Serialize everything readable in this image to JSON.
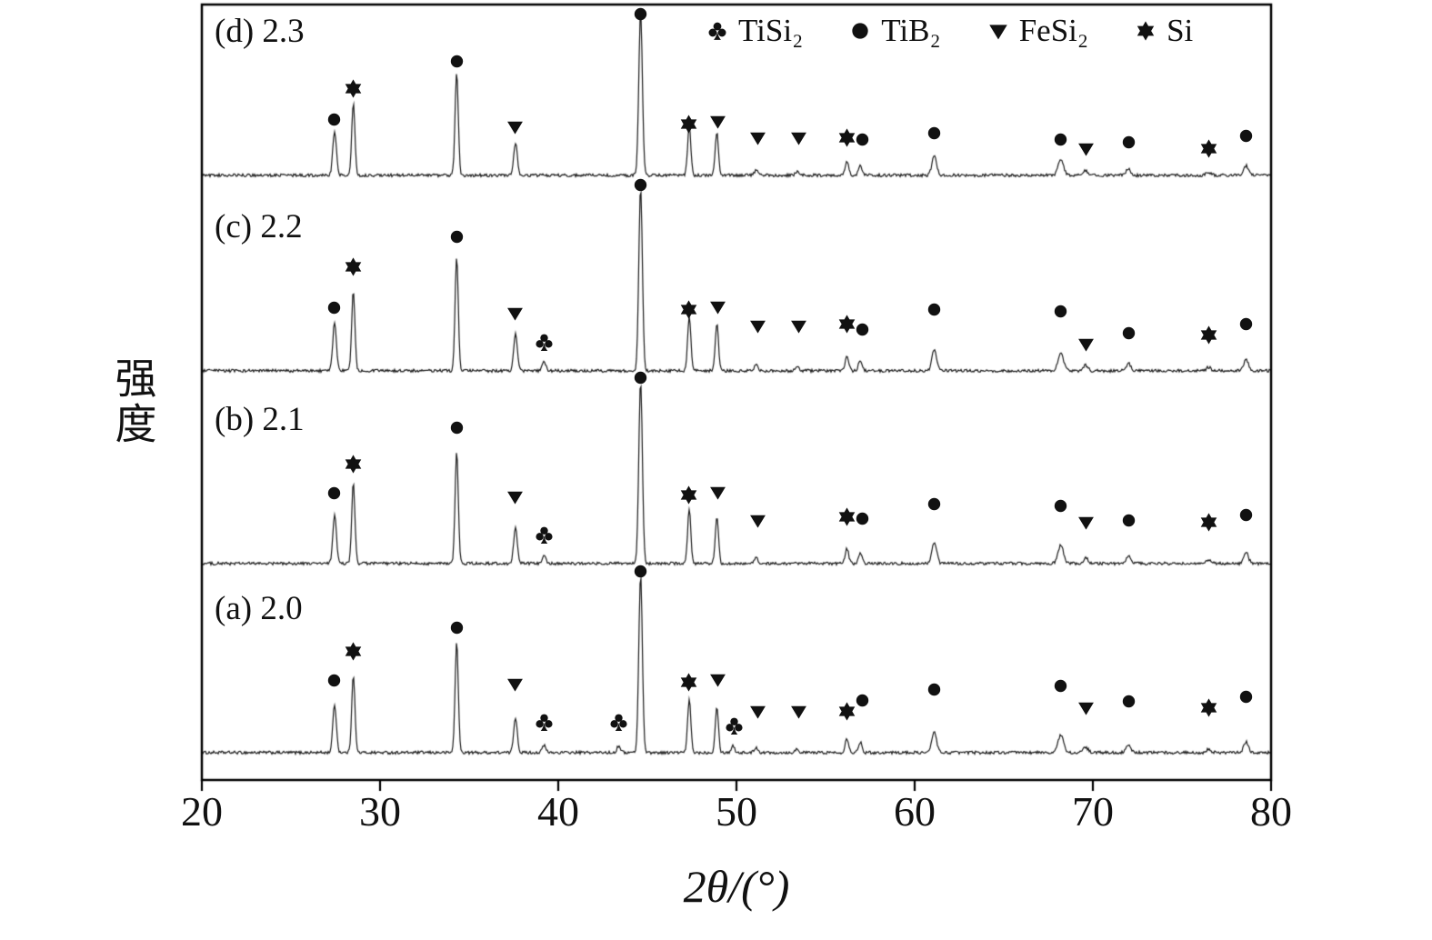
{
  "legend": {
    "items": [
      {
        "marker": "club",
        "label": "TiSi₂"
      },
      {
        "marker": "circle",
        "label": "TiB₂"
      },
      {
        "marker": "triangle",
        "label": "FeSi₂"
      },
      {
        "marker": "star",
        "label": "Si"
      }
    ]
  },
  "chart_data": {
    "type": "line",
    "chart_kind": "stacked-xrd-patterns",
    "title": "",
    "xlabel": "2θ/(°)",
    "ylabel": "强度",
    "xlim": [
      20,
      80
    ],
    "xticks": [
      20,
      30,
      40,
      50,
      60,
      70,
      80
    ],
    "grid": false,
    "legend_position": "top-right-inside",
    "phase_markers": {
      "club": "TiSi₂",
      "circle": "TiB₂",
      "triangle": "FeSi₂",
      "star": "Si"
    },
    "series": [
      {
        "name": "(a) 2.0",
        "panel": "a",
        "ratio": "2.0",
        "baseline": 828,
        "amp": 195,
        "peaks": [
          [
            27.45,
            0.27,
            0.1
          ],
          [
            28.5,
            0.44,
            0.09
          ],
          [
            34.3,
            0.62,
            0.09
          ],
          [
            37.6,
            0.2,
            0.1
          ],
          [
            39.2,
            0.04,
            0.1
          ],
          [
            43.4,
            0.04,
            0.1
          ],
          [
            44.62,
            1.0,
            0.1
          ],
          [
            47.35,
            0.3,
            0.09
          ],
          [
            48.9,
            0.26,
            0.09
          ],
          [
            49.8,
            0.04,
            0.09
          ],
          [
            51.1,
            0.03,
            0.1
          ],
          [
            53.4,
            0.02,
            0.1
          ],
          [
            56.2,
            0.08,
            0.1
          ],
          [
            56.95,
            0.06,
            0.1
          ],
          [
            61.1,
            0.12,
            0.13
          ],
          [
            68.2,
            0.1,
            0.15
          ],
          [
            69.6,
            0.03,
            0.13
          ],
          [
            72.0,
            0.04,
            0.13
          ],
          [
            76.5,
            0.02,
            0.13
          ],
          [
            78.6,
            0.06,
            0.13
          ]
        ],
        "markers": [
          [
            "circle",
            27.4,
            80
          ],
          [
            "star",
            28.52,
            112
          ],
          [
            "circle",
            34.3,
            138
          ],
          [
            "triangle",
            37.6,
            76
          ],
          [
            "club",
            39.2,
            34
          ],
          [
            "club",
            43.4,
            34
          ],
          [
            "circle",
            44.62,
            200
          ],
          [
            "star",
            47.3,
            78
          ],
          [
            "triangle",
            48.95,
            81
          ],
          [
            "club",
            49.85,
            30
          ],
          [
            "triangle",
            51.2,
            46
          ],
          [
            "triangle",
            53.5,
            46
          ],
          [
            "star",
            56.2,
            46
          ],
          [
            "circle",
            57.05,
            58
          ],
          [
            "circle",
            61.1,
            70
          ],
          [
            "circle",
            68.2,
            74
          ],
          [
            "triangle",
            69.6,
            50
          ],
          [
            "circle",
            72.0,
            57
          ],
          [
            "star",
            76.5,
            50
          ],
          [
            "circle",
            78.6,
            62
          ]
        ]
      },
      {
        "name": "(b) 2.1",
        "panel": "b",
        "ratio": "2.1",
        "baseline": 620,
        "amp": 200,
        "peaks": [
          [
            27.45,
            0.27,
            0.1
          ],
          [
            28.5,
            0.44,
            0.09
          ],
          [
            34.3,
            0.62,
            0.09
          ],
          [
            37.6,
            0.2,
            0.1
          ],
          [
            39.2,
            0.05,
            0.1
          ],
          [
            44.62,
            1.0,
            0.1
          ],
          [
            47.35,
            0.3,
            0.09
          ],
          [
            48.9,
            0.26,
            0.09
          ],
          [
            51.1,
            0.03,
            0.1
          ],
          [
            56.2,
            0.08,
            0.1
          ],
          [
            56.95,
            0.06,
            0.1
          ],
          [
            61.1,
            0.12,
            0.13
          ],
          [
            68.2,
            0.1,
            0.15
          ],
          [
            69.6,
            0.03,
            0.13
          ],
          [
            72.0,
            0.04,
            0.13
          ],
          [
            76.5,
            0.02,
            0.13
          ],
          [
            78.6,
            0.06,
            0.13
          ]
        ],
        "markers": [
          [
            "circle",
            27.4,
            78
          ],
          [
            "star",
            28.52,
            110
          ],
          [
            "circle",
            34.3,
            150
          ],
          [
            "triangle",
            37.6,
            74
          ],
          [
            "club",
            39.2,
            32
          ],
          [
            "circle",
            44.62,
            205
          ],
          [
            "star",
            47.3,
            76
          ],
          [
            "triangle",
            48.95,
            79
          ],
          [
            "triangle",
            51.2,
            48
          ],
          [
            "star",
            56.2,
            52
          ],
          [
            "circle",
            57.05,
            50
          ],
          [
            "circle",
            61.1,
            66
          ],
          [
            "circle",
            68.2,
            64
          ],
          [
            "triangle",
            69.6,
            46
          ],
          [
            "circle",
            72.0,
            48
          ],
          [
            "star",
            76.5,
            46
          ],
          [
            "circle",
            78.6,
            54
          ]
        ]
      },
      {
        "name": "(c) 2.2",
        "panel": "c",
        "ratio": "2.2",
        "baseline": 408,
        "amp": 200,
        "peaks": [
          [
            27.45,
            0.27,
            0.1
          ],
          [
            28.5,
            0.44,
            0.09
          ],
          [
            34.3,
            0.62,
            0.09
          ],
          [
            37.6,
            0.2,
            0.1
          ],
          [
            39.2,
            0.05,
            0.1
          ],
          [
            44.62,
            1.0,
            0.1
          ],
          [
            47.35,
            0.3,
            0.09
          ],
          [
            48.9,
            0.26,
            0.09
          ],
          [
            51.1,
            0.03,
            0.1
          ],
          [
            53.4,
            0.02,
            0.1
          ],
          [
            56.2,
            0.08,
            0.1
          ],
          [
            56.95,
            0.06,
            0.1
          ],
          [
            61.1,
            0.12,
            0.13
          ],
          [
            68.2,
            0.1,
            0.15
          ],
          [
            69.6,
            0.03,
            0.13
          ],
          [
            72.0,
            0.04,
            0.13
          ],
          [
            76.5,
            0.02,
            0.13
          ],
          [
            78.6,
            0.06,
            0.13
          ]
        ],
        "markers": [
          [
            "circle",
            27.4,
            70
          ],
          [
            "star",
            28.52,
            115
          ],
          [
            "circle",
            34.3,
            148
          ],
          [
            "triangle",
            37.6,
            64
          ],
          [
            "club",
            39.2,
            32
          ],
          [
            "circle",
            44.62,
            205
          ],
          [
            "star",
            47.3,
            68
          ],
          [
            "triangle",
            48.95,
            71
          ],
          [
            "triangle",
            51.2,
            50
          ],
          [
            "triangle",
            53.5,
            50
          ],
          [
            "star",
            56.2,
            52
          ],
          [
            "circle",
            57.05,
            46
          ],
          [
            "circle",
            61.1,
            68
          ],
          [
            "circle",
            68.2,
            66
          ],
          [
            "triangle",
            69.6,
            30
          ],
          [
            "circle",
            72.0,
            42
          ],
          [
            "star",
            76.5,
            40
          ],
          [
            "circle",
            78.6,
            52
          ]
        ]
      },
      {
        "name": "(d) 2.3",
        "panel": "d",
        "ratio": "2.3",
        "baseline": 193,
        "amp": 180,
        "peaks": [
          [
            27.45,
            0.27,
            0.1
          ],
          [
            28.5,
            0.44,
            0.09
          ],
          [
            34.3,
            0.62,
            0.09
          ],
          [
            37.6,
            0.2,
            0.1
          ],
          [
            44.62,
            1.0,
            0.1
          ],
          [
            47.35,
            0.3,
            0.09
          ],
          [
            48.9,
            0.26,
            0.09
          ],
          [
            51.1,
            0.03,
            0.1
          ],
          [
            53.4,
            0.02,
            0.1
          ],
          [
            56.2,
            0.08,
            0.1
          ],
          [
            56.95,
            0.06,
            0.1
          ],
          [
            61.1,
            0.12,
            0.13
          ],
          [
            68.2,
            0.1,
            0.15
          ],
          [
            69.6,
            0.03,
            0.13
          ],
          [
            72.0,
            0.04,
            0.13
          ],
          [
            76.5,
            0.02,
            0.13
          ],
          [
            78.6,
            0.06,
            0.13
          ]
        ],
        "markers": [
          [
            "circle",
            27.4,
            62
          ],
          [
            "star",
            28.52,
            96
          ],
          [
            "circle",
            34.3,
            126
          ],
          [
            "triangle",
            37.6,
            54
          ],
          [
            "circle",
            44.62,
            178
          ],
          [
            "star",
            47.3,
            57
          ],
          [
            "triangle",
            48.95,
            60
          ],
          [
            "triangle",
            51.2,
            42
          ],
          [
            "triangle",
            53.5,
            42
          ],
          [
            "star",
            56.2,
            42
          ],
          [
            "circle",
            57.05,
            40
          ],
          [
            "circle",
            61.1,
            47
          ],
          [
            "circle",
            68.2,
            40
          ],
          [
            "triangle",
            69.6,
            30
          ],
          [
            "circle",
            72.0,
            37
          ],
          [
            "star",
            76.5,
            30
          ],
          [
            "circle",
            78.6,
            44
          ]
        ]
      }
    ]
  }
}
